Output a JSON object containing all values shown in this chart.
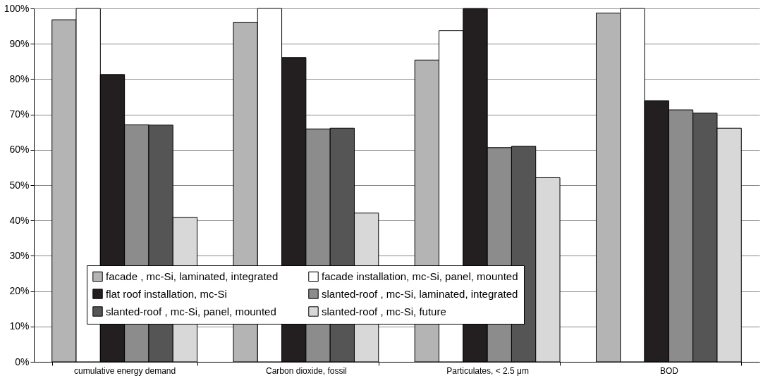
{
  "chart_data": {
    "type": "bar",
    "categories": [
      "cumulative energy demand",
      "Carbon dioxide, fossil",
      "Particulates, < 2.5 μm",
      "BOD"
    ],
    "series": [
      {
        "name": "facade , mc-Si, laminated, integrated",
        "color": "#b4b4b4",
        "values": [
          96.8,
          96.1,
          85.4,
          98.7
        ]
      },
      {
        "name": "facade installation, mc-Si, panel, mounted",
        "color": "#ffffff",
        "values": [
          100,
          100,
          93.7,
          100
        ]
      },
      {
        "name": "flat roof installation, mc-Si",
        "color": "#231f20",
        "values": [
          81.3,
          86.1,
          100,
          73.9
        ]
      },
      {
        "name": "slanted-roof , mc-Si, laminated, integrated",
        "color": "#8c8c8c",
        "values": [
          67.1,
          65.9,
          60.6,
          71.3
        ]
      },
      {
        "name": "slanted-roof , mc-Si, panel, mounted",
        "color": "#555555",
        "values": [
          67,
          66.1,
          61,
          70.4
        ]
      },
      {
        "name": "slanted-roof , mc-Si, future",
        "color": "#d8d8d8",
        "values": [
          40.9,
          42.1,
          52.1,
          66.1
        ]
      }
    ],
    "ylim": [
      0,
      100
    ],
    "yticks": [
      {
        "value": 0,
        "label": "0%"
      },
      {
        "value": 10,
        "label": "10%"
      },
      {
        "value": 20,
        "label": "20%"
      },
      {
        "value": 30,
        "label": "30%"
      },
      {
        "value": 40,
        "label": "40%"
      },
      {
        "value": 50,
        "label": "50%"
      },
      {
        "value": 60,
        "label": "60%"
      },
      {
        "value": 70,
        "label": "70%"
      },
      {
        "value": 80,
        "label": "80%"
      },
      {
        "value": 90,
        "label": "90%"
      },
      {
        "value": 100,
        "label": "100%"
      }
    ],
    "grid": "y",
    "legend": "bottom"
  }
}
